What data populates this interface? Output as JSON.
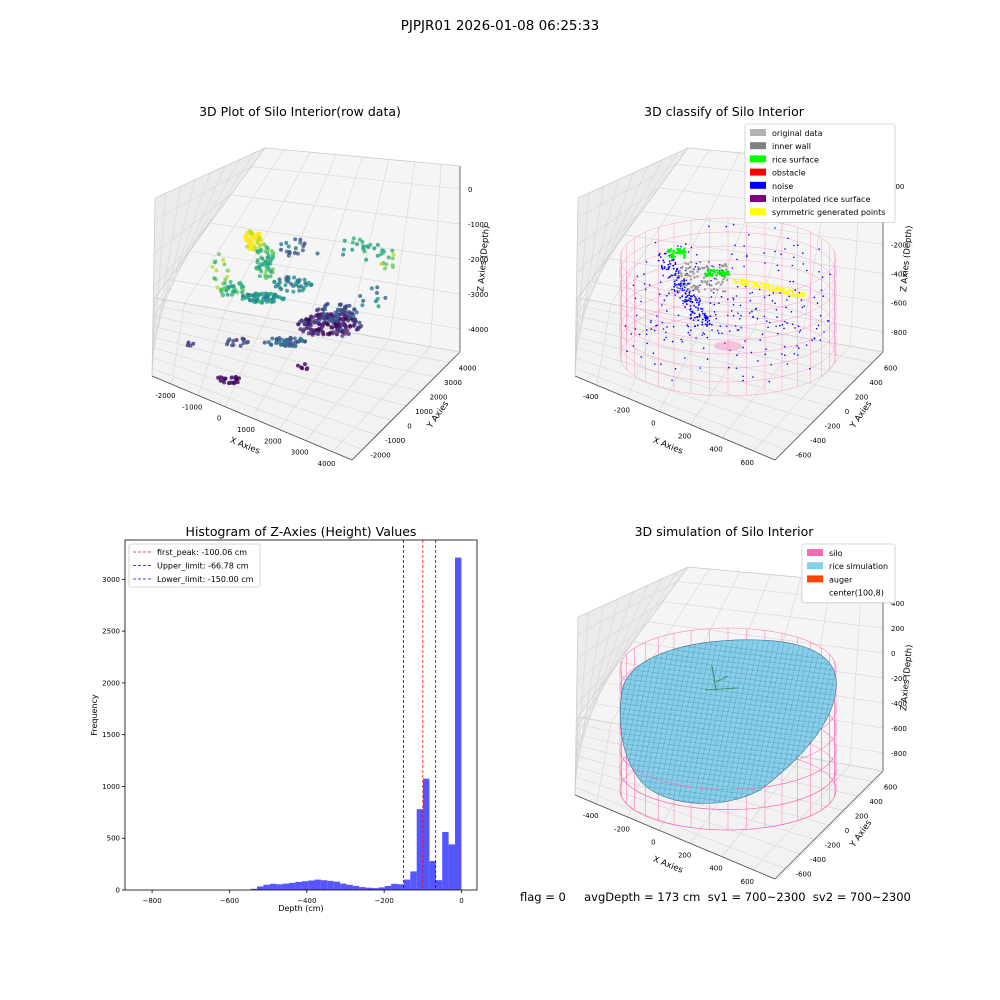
{
  "figure": {
    "suptitle": "PJPJR01 2026-01-08 06:25:33",
    "footer": "flag = 0     avgDepth = 173 cm  sv1 = 700~2300  sv2 = 700~2300"
  },
  "chart_data": [
    {
      "type": "scatter3d",
      "title": "3D Plot of Silo Interior(row data)",
      "xlabel": "X Axies",
      "ylabel": "Y Axies",
      "zlabel": "Z Axies (Depth)",
      "xlim": [
        -2000,
        4000
      ],
      "ylim": [
        -2000,
        4000
      ],
      "zlim": [
        -4000,
        0
      ],
      "x_ticks": [
        "-2000",
        "-1000",
        "0",
        "1000",
        "2000",
        "3000",
        "4000"
      ],
      "y_ticks": [
        "-2000",
        "-1000",
        "0",
        "1000",
        "2000",
        "3000",
        "4000"
      ],
      "z_ticks": [
        "-4000",
        "-3000",
        "-2000",
        "-1000",
        "0"
      ],
      "colormap": "viridis",
      "grid": true
    },
    {
      "type": "scatter3d",
      "title": "3D classify of Silo Interior",
      "xlabel": "X Axies",
      "ylabel": "Y Axies",
      "zlabel": "Z Axies (Depth)",
      "xlim": [
        -400,
        600
      ],
      "ylim": [
        -600,
        600
      ],
      "zlim": [
        -800,
        200
      ],
      "x_ticks": [
        "-400",
        "-200",
        "0",
        "200",
        "400",
        "600"
      ],
      "y_ticks": [
        "-600",
        "-400",
        "-200",
        "0",
        "200",
        "400",
        "600"
      ],
      "z_ticks": [
        "-800",
        "-600",
        "-400",
        "-200",
        "0",
        "200"
      ],
      "legend_position": "top-right",
      "grid": true,
      "legend": [
        {
          "label": "original data",
          "color": "#b3b3b3"
        },
        {
          "label": "inner wall",
          "color": "#808080"
        },
        {
          "label": "rice surface",
          "color": "#00ff00"
        },
        {
          "label": "obstacle",
          "color": "#ff0000"
        },
        {
          "label": "noise",
          "color": "#0000ff"
        },
        {
          "label": "interpolated rice surface",
          "color": "#800080"
        },
        {
          "label": "symmetric generated points",
          "color": "#ffff00"
        }
      ]
    },
    {
      "type": "bar",
      "title": "Histogram of Z-Axies (Height) Values",
      "xlabel": "Depth (cm)",
      "ylabel": "Frequency",
      "xlim": [
        -870,
        40
      ],
      "ylim": [
        0,
        3380
      ],
      "x_ticks": [
        -800,
        -600,
        -400,
        -200,
        0
      ],
      "y_ticks": [
        0,
        500,
        1000,
        1500,
        2000,
        2500,
        3000
      ],
      "bar_color": "#4d4dff",
      "bin_width": 16.5,
      "bins_start": [
        -545,
        -528.5,
        -512,
        -495.5,
        -479,
        -462.5,
        -446,
        -429.5,
        -413,
        -396.5,
        -380,
        -363.5,
        -347,
        -330.5,
        -314,
        -297.5,
        -281,
        -264.5,
        -248,
        -231.5,
        -215,
        -198.5,
        -182,
        -165.5,
        -149,
        -132.5,
        -116,
        -99.5,
        -83,
        -66.5,
        -50,
        -33.5,
        -17
      ],
      "values": [
        12,
        35,
        50,
        60,
        55,
        62,
        70,
        78,
        85,
        92,
        100,
        95,
        88,
        80,
        62,
        50,
        40,
        28,
        22,
        18,
        25,
        40,
        60,
        55,
        100,
        180,
        780,
        1075,
        280,
        95,
        560,
        440,
        3210
      ],
      "legend_position": "top-left",
      "vlines": [
        {
          "label": "first_peak: -100.06 cm",
          "x": -100.06,
          "color": "#ff0000"
        },
        {
          "label": "Upper_limit: -66.78 cm",
          "x": -66.78,
          "color": "#0000ff"
        },
        {
          "label": "Lower_limit: -150.00 cm",
          "x": -150.0,
          "color": "#0000ff"
        }
      ]
    },
    {
      "type": "surface3d",
      "title": "3D simulation of Silo Interior",
      "xlabel": "X Axies",
      "ylabel": "Y Axies",
      "zlabel": "Z Axies (Depth)",
      "xlim": [
        -400,
        600
      ],
      "ylim": [
        -600,
        600
      ],
      "zlim": [
        -800,
        400
      ],
      "x_ticks": [
        "-400",
        "-200",
        "0",
        "200",
        "400",
        "600"
      ],
      "y_ticks": [
        "-600",
        "-400",
        "-200",
        "0",
        "200",
        "400",
        "600"
      ],
      "z_ticks": [
        "-800",
        "-600",
        "-400",
        "-200",
        "0",
        "200",
        "400"
      ],
      "legend_position": "top-right",
      "grid": true,
      "legend": [
        {
          "label": "silo",
          "color": "#ff69b4"
        },
        {
          "label": "rice simulation",
          "color": "#87ceeb"
        },
        {
          "label": "auger",
          "color": "#ff4500"
        },
        {
          "label": "center(100,8)",
          "color": "#ffffff"
        }
      ]
    }
  ]
}
